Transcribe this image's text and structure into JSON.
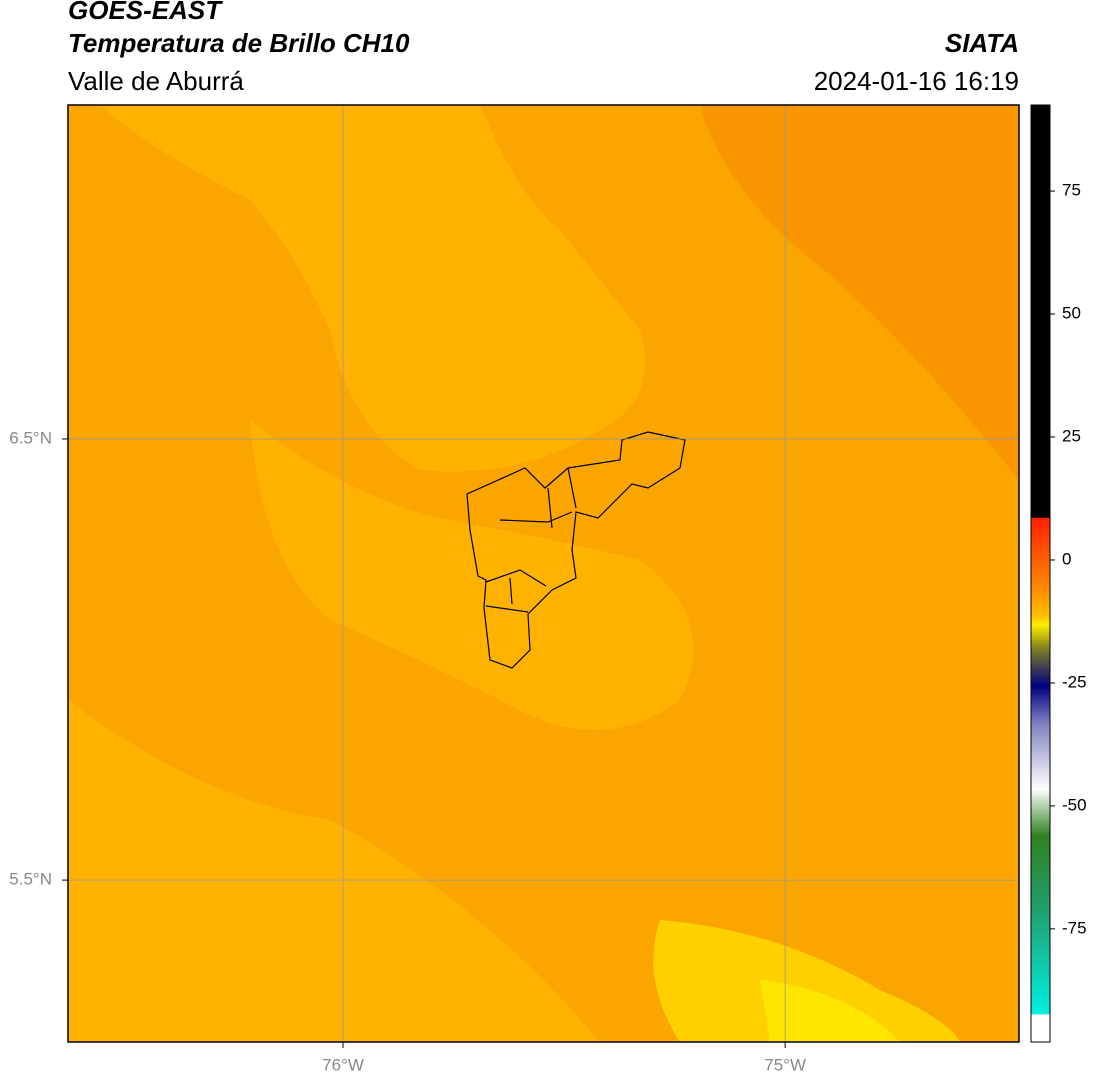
{
  "header": {
    "title": "GOES-EAST",
    "subtitle": "Temperatura de Brillo CH10",
    "region": "Valle de Aburrá",
    "source": "SIATA",
    "datetime": "2024-01-16 16:19"
  },
  "map": {
    "lonlim": [
      -76.622,
      -74.471
    ],
    "latlim": [
      5.133,
      7.257
    ],
    "lonticks": [
      {
        "value": -76,
        "label": "76°W"
      },
      {
        "value": -75,
        "label": "75°W"
      }
    ],
    "latticks": [
      {
        "value": 6.5,
        "label": "6.5°N"
      },
      {
        "value": 5.5,
        "label": "5.5°N"
      }
    ]
  },
  "colorbar": {
    "lim": [
      -98,
      92.5
    ],
    "ticks": [
      75,
      50,
      25,
      0,
      -25,
      -50,
      -75
    ]
  }
}
